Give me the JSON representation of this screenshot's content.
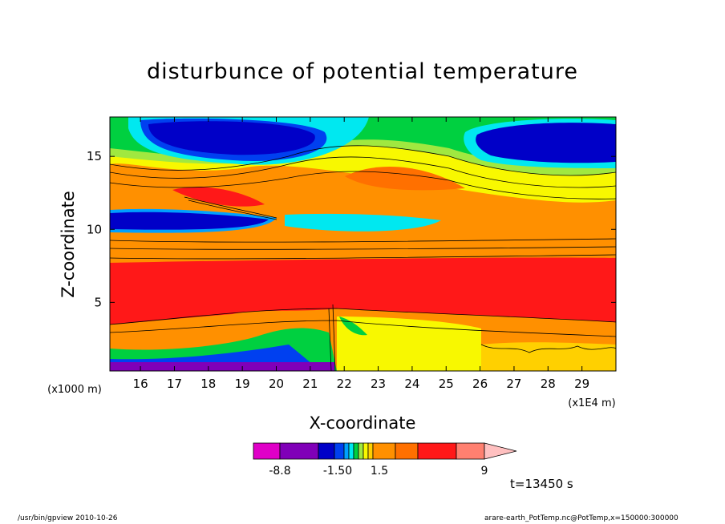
{
  "chart_data": {
    "type": "heatmap",
    "title": "disturbunce of potential temperature",
    "xlabel": "X-coordinate",
    "ylabel": "Z-coordinate",
    "x_unit_left": "(x1000 m)",
    "x_unit_right": "(x1E4 m)",
    "x_ticks": [
      16,
      17,
      18,
      19,
      20,
      21,
      22,
      23,
      24,
      25,
      26,
      27,
      28,
      29
    ],
    "y_ticks": [
      5,
      10,
      15
    ],
    "xlim": [
      15.1,
      30
    ],
    "ylim": [
      0.3,
      17.7
    ],
    "colorbar": {
      "labels": [
        "-8.8",
        "-1.50",
        "1.5",
        "9"
      ],
      "label_values": [
        -8.8,
        -1.5,
        1.5,
        9
      ],
      "colors": [
        "#e000c8",
        "#8000b8",
        "#0000c8",
        "#0040f0",
        "#00a0ff",
        "#00e8f0",
        "#00d040",
        "#a0e840",
        "#f8f800",
        "#ffd000",
        "#ff9000",
        "#ff7000",
        "#ff1818",
        "#ff8070",
        "#ffc0c0"
      ]
    },
    "time_label": "t=13450 s"
  },
  "footer": {
    "left": "/usr/bin/gpview   2010-10-26",
    "right": "arare-earth_PotTemp.nc@PotTemp,x=150000:300000"
  }
}
